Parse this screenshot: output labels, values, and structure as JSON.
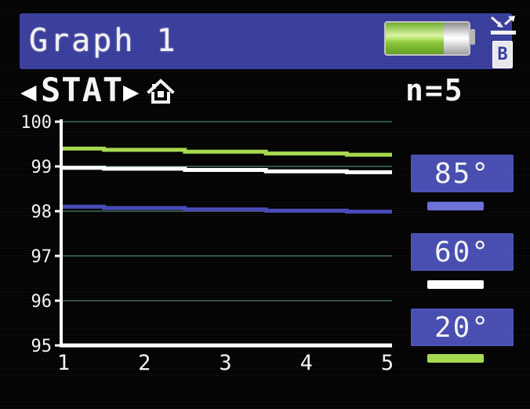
{
  "header": {
    "title": "Graph 1",
    "battery": {
      "level_percent": 70
    },
    "badge_label": "B"
  },
  "nav": {
    "prev_arrow": "◀",
    "mode_label": "STAT",
    "next_arrow": "▶"
  },
  "stats": {
    "count_label": "n=5"
  },
  "chart_data": {
    "type": "line",
    "interpolation": "step",
    "title": "",
    "xlabel": "",
    "ylabel": "",
    "x": [
      1,
      2,
      3,
      4,
      5
    ],
    "xticks": [
      1,
      2,
      3,
      4,
      5
    ],
    "yticks": [
      95,
      96,
      97,
      98,
      99,
      100
    ],
    "xlim": [
      1,
      5
    ],
    "ylim": [
      95,
      100
    ],
    "grid": true,
    "legend_position": "right",
    "series": [
      {
        "name": "20°",
        "color": "#a6d94e",
        "values": [
          99.4,
          99.37,
          99.33,
          99.29,
          99.26
        ]
      },
      {
        "name": "60°",
        "color": "#ffffff",
        "values": [
          98.97,
          98.95,
          98.92,
          98.89,
          98.87
        ]
      },
      {
        "name": "85°",
        "color": "#4749b6",
        "values": [
          98.1,
          98.07,
          98.04,
          98.01,
          97.99
        ]
      }
    ]
  },
  "legend_buttons": [
    {
      "label": "85°",
      "swatch_color": "#6b6fd8"
    },
    {
      "label": "60°",
      "swatch_color": "#ffffff"
    },
    {
      "label": "20°",
      "swatch_color": "#a6d94e"
    }
  ],
  "colors": {
    "panel_blue": "#383d9b",
    "button_blue": "#474cb0",
    "grid_line": "#2e5048",
    "axis": "#ffffff",
    "background": "#020202"
  }
}
